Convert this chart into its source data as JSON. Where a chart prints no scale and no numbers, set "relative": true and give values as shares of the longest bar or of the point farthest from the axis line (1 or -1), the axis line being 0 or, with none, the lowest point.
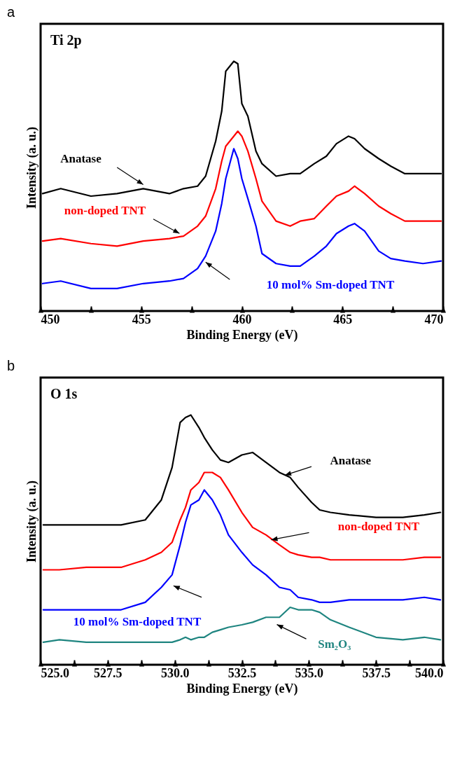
{
  "chart_data": [
    {
      "type": "line",
      "title": "a",
      "xlabel": "Binding Energy (eV)",
      "ylabel": "Intensity (a. u.)",
      "annotations": [
        "Ti 2p"
      ],
      "relative": true,
      "xlim": [
        450,
        470
      ],
      "xticks": [
        450,
        {
          "value": 452.5,
          "label": null
        },
        455,
        {
          "value": 457.5,
          "label": null
        },
        460,
        {
          "value": 462.5,
          "label": null
        },
        465,
        {
          "value": 467.5,
          "label": null
        },
        470
      ],
      "x": [
        450.1,
        451.0,
        452.5,
        453.8,
        455.1,
        456.4,
        457.1,
        457.8,
        458.2,
        458.7,
        459.0,
        459.2,
        459.6,
        459.8,
        460.0,
        460.3,
        460.7,
        461.0,
        461.7,
        462.4,
        462.9,
        463.6,
        464.2,
        464.7,
        465.3,
        465.6,
        466.1,
        466.8,
        467.4,
        468.1,
        469.0,
        469.9
      ],
      "series": [
        {
          "name": "Anatase",
          "color": "#000000",
          "values": [
            0.47,
            0.49,
            0.46,
            0.47,
            0.49,
            0.47,
            0.49,
            0.5,
            0.54,
            0.68,
            0.8,
            0.96,
            1.0,
            0.99,
            0.83,
            0.78,
            0.64,
            0.59,
            0.54,
            0.55,
            0.55,
            0.59,
            0.62,
            0.67,
            0.7,
            0.69,
            0.65,
            0.61,
            0.58,
            0.55,
            0.55,
            0.55
          ]
        },
        {
          "name": "non-doped TNT",
          "color": "#ff0000",
          "values": [
            0.28,
            0.29,
            0.27,
            0.26,
            0.28,
            0.29,
            0.3,
            0.34,
            0.38,
            0.49,
            0.6,
            0.66,
            0.7,
            0.72,
            0.7,
            0.64,
            0.53,
            0.44,
            0.36,
            0.34,
            0.36,
            0.37,
            0.42,
            0.46,
            0.48,
            0.5,
            0.47,
            0.42,
            0.39,
            0.36,
            0.36,
            0.36
          ]
        },
        {
          "name": "10 mol% Sm-doped TNT",
          "color": "#0000ff",
          "values": [
            0.11,
            0.12,
            0.09,
            0.09,
            0.11,
            0.12,
            0.13,
            0.17,
            0.22,
            0.32,
            0.43,
            0.53,
            0.65,
            0.61,
            0.53,
            0.45,
            0.34,
            0.23,
            0.19,
            0.18,
            0.18,
            0.22,
            0.26,
            0.31,
            0.34,
            0.35,
            0.32,
            0.24,
            0.21,
            0.2,
            0.19,
            0.2
          ]
        }
      ]
    },
    {
      "type": "line",
      "title": "b",
      "xlabel": "Binding Energy (eV)",
      "ylabel": "Intensity (a. u.)",
      "annotations": [
        "O 1s"
      ],
      "relative": true,
      "xlim": [
        525,
        540
      ],
      "xticks": [
        {
          "value": 525,
          "label": "525.0"
        },
        {
          "value": 526.25,
          "label": null
        },
        {
          "value": 527.5,
          "label": "527.5"
        },
        {
          "value": 528.75,
          "label": null
        },
        {
          "value": 530,
          "label": "530.0"
        },
        {
          "value": 531.25,
          "label": null
        },
        {
          "value": 532.5,
          "label": "532.5"
        },
        {
          "value": 533.75,
          "label": null
        },
        {
          "value": 535,
          "label": "535.0"
        },
        {
          "value": 536.25,
          "label": null
        },
        {
          "value": 537.5,
          "label": "537.5"
        },
        {
          "value": 538.75,
          "label": null
        },
        {
          "value": 540,
          "label": "540.0"
        }
      ],
      "x": [
        525.1,
        525.7,
        526.7,
        528.0,
        528.9,
        529.5,
        529.9,
        530.2,
        530.4,
        530.6,
        530.9,
        531.1,
        531.4,
        531.7,
        532.0,
        532.5,
        532.9,
        533.4,
        533.9,
        534.3,
        534.6,
        535.1,
        535.4,
        535.8,
        536.5,
        537.5,
        538.5,
        539.3,
        539.9
      ],
      "series": [
        {
          "name": "Anatase",
          "color": "#000000",
          "values": [
            0.56,
            0.56,
            0.56,
            0.56,
            0.58,
            0.66,
            0.79,
            0.97,
            0.99,
            1.0,
            0.95,
            0.91,
            0.86,
            0.82,
            0.81,
            0.84,
            0.85,
            0.81,
            0.77,
            0.75,
            0.71,
            0.65,
            0.62,
            0.61,
            0.6,
            0.59,
            0.59,
            0.6,
            0.61
          ]
        },
        {
          "name": "non-doped TNT",
          "color": "#ff0000",
          "values": [
            0.38,
            0.38,
            0.39,
            0.39,
            0.42,
            0.45,
            0.49,
            0.58,
            0.63,
            0.7,
            0.73,
            0.77,
            0.77,
            0.75,
            0.7,
            0.61,
            0.55,
            0.52,
            0.48,
            0.45,
            0.44,
            0.43,
            0.43,
            0.42,
            0.42,
            0.42,
            0.42,
            0.43,
            0.43
          ]
        },
        {
          "name": "10 mol% Sm-doped TNT",
          "color": "#0000ff",
          "values": [
            0.22,
            0.22,
            0.22,
            0.22,
            0.25,
            0.31,
            0.36,
            0.48,
            0.57,
            0.64,
            0.66,
            0.7,
            0.66,
            0.6,
            0.52,
            0.45,
            0.4,
            0.36,
            0.31,
            0.3,
            0.27,
            0.26,
            0.25,
            0.25,
            0.26,
            0.26,
            0.26,
            0.27,
            0.26
          ]
        },
        {
          "name": "Sm₂O₃",
          "color": "#1f8580",
          "values": [
            0.09,
            0.1,
            0.09,
            0.09,
            0.09,
            0.09,
            0.09,
            0.1,
            0.11,
            0.1,
            0.11,
            0.11,
            0.13,
            0.14,
            0.15,
            0.16,
            0.17,
            0.19,
            0.19,
            0.23,
            0.22,
            0.22,
            0.21,
            0.18,
            0.15,
            0.11,
            0.1,
            0.11,
            0.1
          ]
        }
      ]
    }
  ]
}
